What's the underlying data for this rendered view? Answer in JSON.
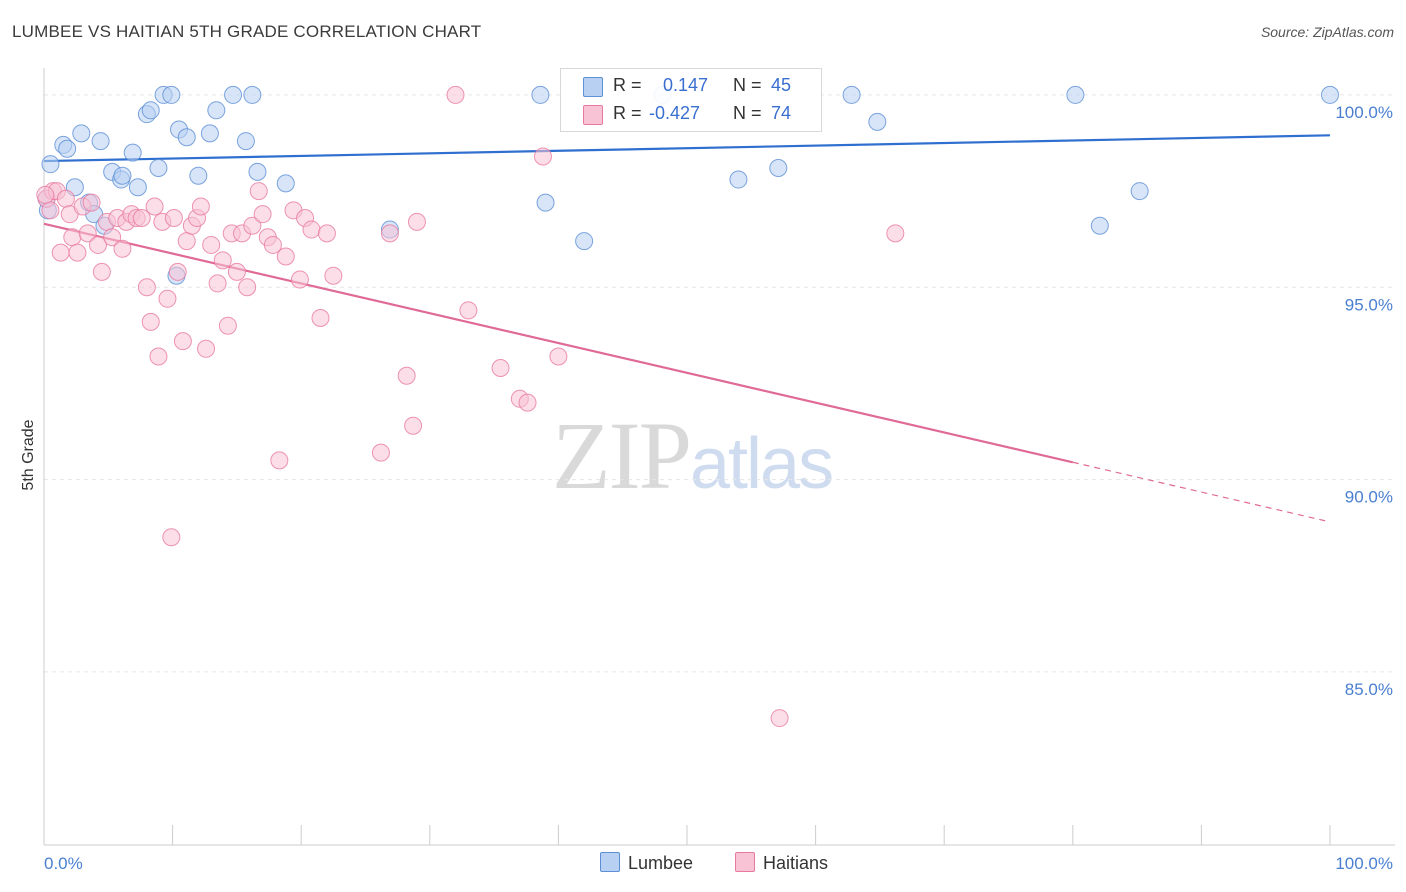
{
  "title": "LUMBEE VS HAITIAN 5TH GRADE CORRELATION CHART",
  "source": "Source: ZipAtlas.com",
  "watermark": {
    "zip": "ZIP",
    "atlas": "atlas"
  },
  "colors": {
    "lumbee": "#5b8fd6",
    "lumbee_fill": "#b8d0f2",
    "haitians": "#e87aa0",
    "haitians_fill": "#f7c3d5",
    "lumbee_line": "#2f6fcf",
    "haitians_line": "#e06a96",
    "tick_text": "#4a7fd0"
  },
  "legend_stats": [
    {
      "r_label": "R =",
      "r_value": "0.147",
      "n_label": "N =",
      "n_value": "45"
    },
    {
      "r_label": "R =",
      "r_value": "-0.427",
      "n_label": "N =",
      "n_value": "74"
    }
  ],
  "chart_data": {
    "type": "scatter",
    "title": "LUMBEE VS HAITIAN 5TH GRADE CORRELATION CHART",
    "xlabel": "",
    "ylabel": "5th Grade",
    "xlim": [
      0,
      100
    ],
    "ylim": [
      80.5,
      100.7
    ],
    "x_tick_labels": [
      "0.0%",
      "100.0%"
    ],
    "y_ticks": [
      100,
      95,
      90,
      85
    ],
    "y_tick_labels": [
      "100.0%",
      "95.0%",
      "90.0%",
      "85.0%"
    ],
    "grid": true,
    "legend_position": "bottom",
    "series": [
      {
        "name": "Lumbee",
        "points": [
          [
            0.5,
            98.2
          ],
          [
            1.5,
            98.7
          ],
          [
            1.8,
            98.6
          ],
          [
            2.4,
            97.6
          ],
          [
            2.9,
            99.0
          ],
          [
            3.5,
            97.2
          ],
          [
            3.9,
            96.9
          ],
          [
            4.4,
            98.8
          ],
          [
            4.7,
            96.6
          ],
          [
            5.3,
            98.0
          ],
          [
            6.0,
            97.8
          ],
          [
            6.1,
            97.9
          ],
          [
            6.9,
            98.5
          ],
          [
            7.3,
            97.6
          ],
          [
            8.0,
            99.5
          ],
          [
            8.3,
            99.6
          ],
          [
            8.9,
            98.1
          ],
          [
            9.3,
            100.0
          ],
          [
            9.9,
            100.0
          ],
          [
            10.3,
            95.3
          ],
          [
            10.5,
            99.1
          ],
          [
            11.1,
            98.9
          ],
          [
            12.0,
            97.9
          ],
          [
            12.9,
            99.0
          ],
          [
            13.4,
            99.6
          ],
          [
            14.7,
            100.0
          ],
          [
            15.7,
            98.8
          ],
          [
            16.2,
            100.0
          ],
          [
            16.6,
            98.0
          ],
          [
            18.8,
            97.7
          ],
          [
            26.9,
            96.5
          ],
          [
            38.6,
            100.0
          ],
          [
            39.0,
            97.2
          ],
          [
            42.0,
            96.2
          ],
          [
            48.1,
            100.0
          ],
          [
            54.0,
            97.8
          ],
          [
            57.1,
            98.1
          ],
          [
            62.8,
            100.0
          ],
          [
            64.8,
            99.3
          ],
          [
            80.2,
            100.0
          ],
          [
            82.1,
            96.6
          ],
          [
            85.2,
            97.5
          ],
          [
            100.0,
            100.0
          ],
          [
            0.3,
            97.0
          ],
          [
            0.2,
            97.3
          ]
        ]
      },
      {
        "name": "Haitians",
        "points": [
          [
            0.2,
            97.3
          ],
          [
            0.5,
            97.0
          ],
          [
            0.7,
            97.5
          ],
          [
            1.0,
            97.5
          ],
          [
            1.3,
            95.9
          ],
          [
            1.7,
            97.3
          ],
          [
            2.0,
            96.9
          ],
          [
            2.2,
            96.3
          ],
          [
            2.6,
            95.9
          ],
          [
            3.0,
            97.1
          ],
          [
            3.4,
            96.4
          ],
          [
            3.7,
            97.2
          ],
          [
            4.2,
            96.1
          ],
          [
            4.5,
            95.4
          ],
          [
            4.9,
            96.7
          ],
          [
            5.3,
            96.3
          ],
          [
            5.7,
            96.8
          ],
          [
            6.1,
            96.0
          ],
          [
            6.4,
            96.7
          ],
          [
            6.8,
            96.9
          ],
          [
            7.2,
            96.8
          ],
          [
            7.6,
            96.8
          ],
          [
            8.0,
            95.0
          ],
          [
            8.3,
            94.1
          ],
          [
            8.6,
            97.1
          ],
          [
            8.9,
            93.2
          ],
          [
            9.2,
            96.7
          ],
          [
            9.6,
            94.7
          ],
          [
            10.1,
            96.8
          ],
          [
            10.4,
            95.4
          ],
          [
            10.8,
            93.6
          ],
          [
            11.1,
            96.2
          ],
          [
            11.5,
            96.6
          ],
          [
            11.9,
            96.8
          ],
          [
            12.2,
            97.1
          ],
          [
            12.6,
            93.4
          ],
          [
            13.0,
            96.1
          ],
          [
            13.5,
            95.1
          ],
          [
            13.9,
            95.7
          ],
          [
            14.3,
            94.0
          ],
          [
            14.6,
            96.4
          ],
          [
            15.0,
            95.4
          ],
          [
            15.4,
            96.4
          ],
          [
            15.8,
            95.0
          ],
          [
            16.2,
            96.6
          ],
          [
            16.7,
            97.5
          ],
          [
            17.0,
            96.9
          ],
          [
            17.4,
            96.3
          ],
          [
            17.8,
            96.1
          ],
          [
            18.3,
            90.5
          ],
          [
            18.8,
            95.8
          ],
          [
            19.4,
            97.0
          ],
          [
            19.9,
            95.2
          ],
          [
            20.3,
            96.8
          ],
          [
            20.8,
            96.5
          ],
          [
            21.5,
            94.2
          ],
          [
            22.0,
            96.4
          ],
          [
            22.5,
            95.3
          ],
          [
            26.2,
            90.7
          ],
          [
            26.9,
            96.4
          ],
          [
            28.2,
            92.7
          ],
          [
            28.7,
            91.4
          ],
          [
            29.0,
            96.7
          ],
          [
            32.0,
            100.0
          ],
          [
            33.0,
            94.4
          ],
          [
            35.5,
            92.9
          ],
          [
            37.0,
            92.1
          ],
          [
            37.6,
            92.0
          ],
          [
            38.8,
            98.4
          ],
          [
            40.0,
            93.2
          ],
          [
            57.2,
            83.8
          ],
          [
            66.2,
            96.4
          ],
          [
            9.9,
            88.5
          ],
          [
            0.1,
            97.4
          ]
        ]
      }
    ],
    "trend_lines": [
      {
        "name": "Lumbee",
        "x": [
          0,
          100
        ],
        "y": [
          98.28,
          98.95
        ]
      },
      {
        "name": "Haitians",
        "x": [
          0,
          80.0,
          100
        ],
        "y": [
          96.65,
          90.45,
          88.9
        ]
      }
    ]
  }
}
